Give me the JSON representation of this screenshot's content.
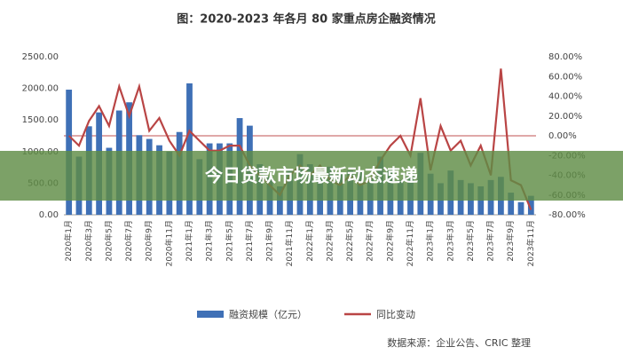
{
  "chart_data": {
    "type": "bar-line",
    "title": "图：2020-2023 年各月 80 家重点房企融资情况",
    "banner": "今日贷款市场最新动态速递",
    "source": "数据来源：企业公告、CRIC 整理",
    "categories": [
      "2020年1月",
      null,
      "2020年3月",
      null,
      "2020年5月",
      null,
      "2020年7月",
      null,
      "2020年9月",
      null,
      "2020年11月",
      null,
      "2021年1月",
      null,
      "2021年3月",
      null,
      "2021年5月",
      null,
      "2021年7月",
      null,
      "2021年9月",
      null,
      "2021年11月",
      null,
      "2022年1月",
      null,
      "2022年3月",
      null,
      "2022年5月",
      null,
      "2022年7月",
      null,
      "2022年9月",
      null,
      "2022年11月",
      null,
      "2023年1月",
      null,
      "2023年3月",
      null,
      "2023年5月",
      null,
      "2023年7月",
      null,
      "2023年9月",
      null,
      "2023年11月"
    ],
    "series": [
      {
        "name": "融资规模（亿元）",
        "color": "#3f70b6",
        "kind": "bar",
        "values": [
          1980,
          920,
          1400,
          1620,
          1060,
          1650,
          1780,
          1260,
          1200,
          1100,
          1000,
          1310,
          2080,
          880,
          1130,
          1130,
          1130,
          1530,
          1410,
          800,
          600,
          450,
          700,
          960,
          800,
          600,
          760,
          650,
          700,
          700,
          600,
          920,
          700,
          550,
          650,
          980,
          650,
          500,
          700,
          550,
          500,
          450,
          550,
          600,
          350,
          200,
          300
        ]
      },
      {
        "name": "同比变动",
        "color": "#b94545",
        "kind": "line",
        "axis": "y2",
        "values": [
          0,
          -10,
          15,
          30,
          10,
          50,
          20,
          50,
          5,
          18,
          -5,
          -20,
          5,
          -5,
          -15,
          -15,
          -10,
          -10,
          -30,
          -40,
          -50,
          -60,
          -40,
          -30,
          -40,
          -30,
          -45,
          -50,
          -40,
          -50,
          -45,
          -25,
          -10,
          0,
          -20,
          38,
          -35,
          10,
          -15,
          -5,
          -30,
          -10,
          -40,
          68,
          -45,
          -50,
          -75
        ]
      }
    ],
    "ylim": [
      0,
      2500
    ],
    "yticks": [
      {
        "value": 0,
        "label": "0.00"
      },
      {
        "value": 500,
        "label": "500.00"
      },
      {
        "value": 1000,
        "label": "1000.00"
      },
      {
        "value": 1500,
        "label": "1500.00"
      },
      {
        "value": 2000,
        "label": "2000.00"
      },
      {
        "value": 2500,
        "label": "2500.00"
      }
    ],
    "y2lim": [
      -80,
      80
    ],
    "y2ticks": [
      {
        "value": -80,
        "label": "-80.00%"
      },
      {
        "value": -60,
        "label": "-60.00%"
      },
      {
        "value": -40,
        "label": "-40.00%"
      },
      {
        "value": -20,
        "label": "-20.00%"
      },
      {
        "value": 0,
        "label": "0.00%"
      },
      {
        "value": 20,
        "label": "20.00%"
      },
      {
        "value": 40,
        "label": "40.00%"
      },
      {
        "value": 60,
        "label": "60.00%"
      },
      {
        "value": 80,
        "label": "80.00%"
      }
    ],
    "y2_zero_line": true,
    "legend": "bottom"
  }
}
